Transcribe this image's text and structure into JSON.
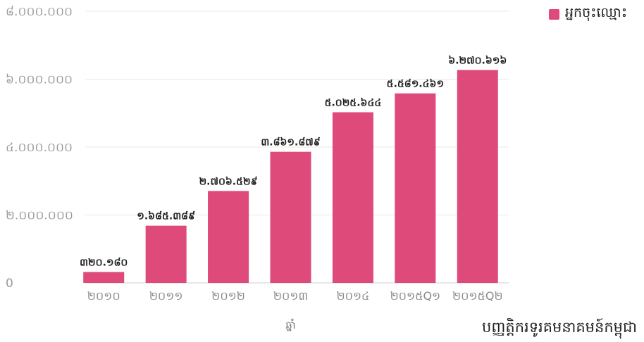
{
  "legend": {
    "label": "អ្នកចុះឈ្មោះ",
    "color": "#de4a7a"
  },
  "source": "បញ្ញត្តិករទូរគមនាគមន៍កម្ពុជា",
  "chart_data": {
    "type": "bar",
    "categories": [
      "២០១០",
      "២០១១",
      "២០១២",
      "២០១៣",
      "២០១៤",
      "២០១៥Q១",
      "២០១៥Q២"
    ],
    "series": [
      {
        "name": "អ្នកចុះឈ្មោះ",
        "values": [
          320180,
          1685389,
          2706529,
          3861879,
          5025644,
          5581461,
          6270616
        ],
        "labels": [
          "៣២០.១៨០",
          "១.៦៨៥.៣៨៩",
          "២.៧០៦.៥២៩",
          "៣.៨៦១.៨៧៩",
          "៥.០២៥.៦៤៤",
          "៥.៥៨១.៤៦១",
          "៦.២៧០.៦១៦"
        ],
        "color": "#de4a7a"
      }
    ],
    "xlabel": "ឆ្នាំ",
    "ylim": [
      0,
      8000000
    ],
    "yticks": [
      0,
      2000000,
      4000000,
      6000000,
      8000000
    ],
    "ytick_labels": [
      "0",
      "២.០០០.០០០",
      "៤.០០០.០០០",
      "៦.០០០.០០០",
      "៨.០០០.០០០"
    ],
    "grid": true,
    "legend_position": "top-right"
  }
}
